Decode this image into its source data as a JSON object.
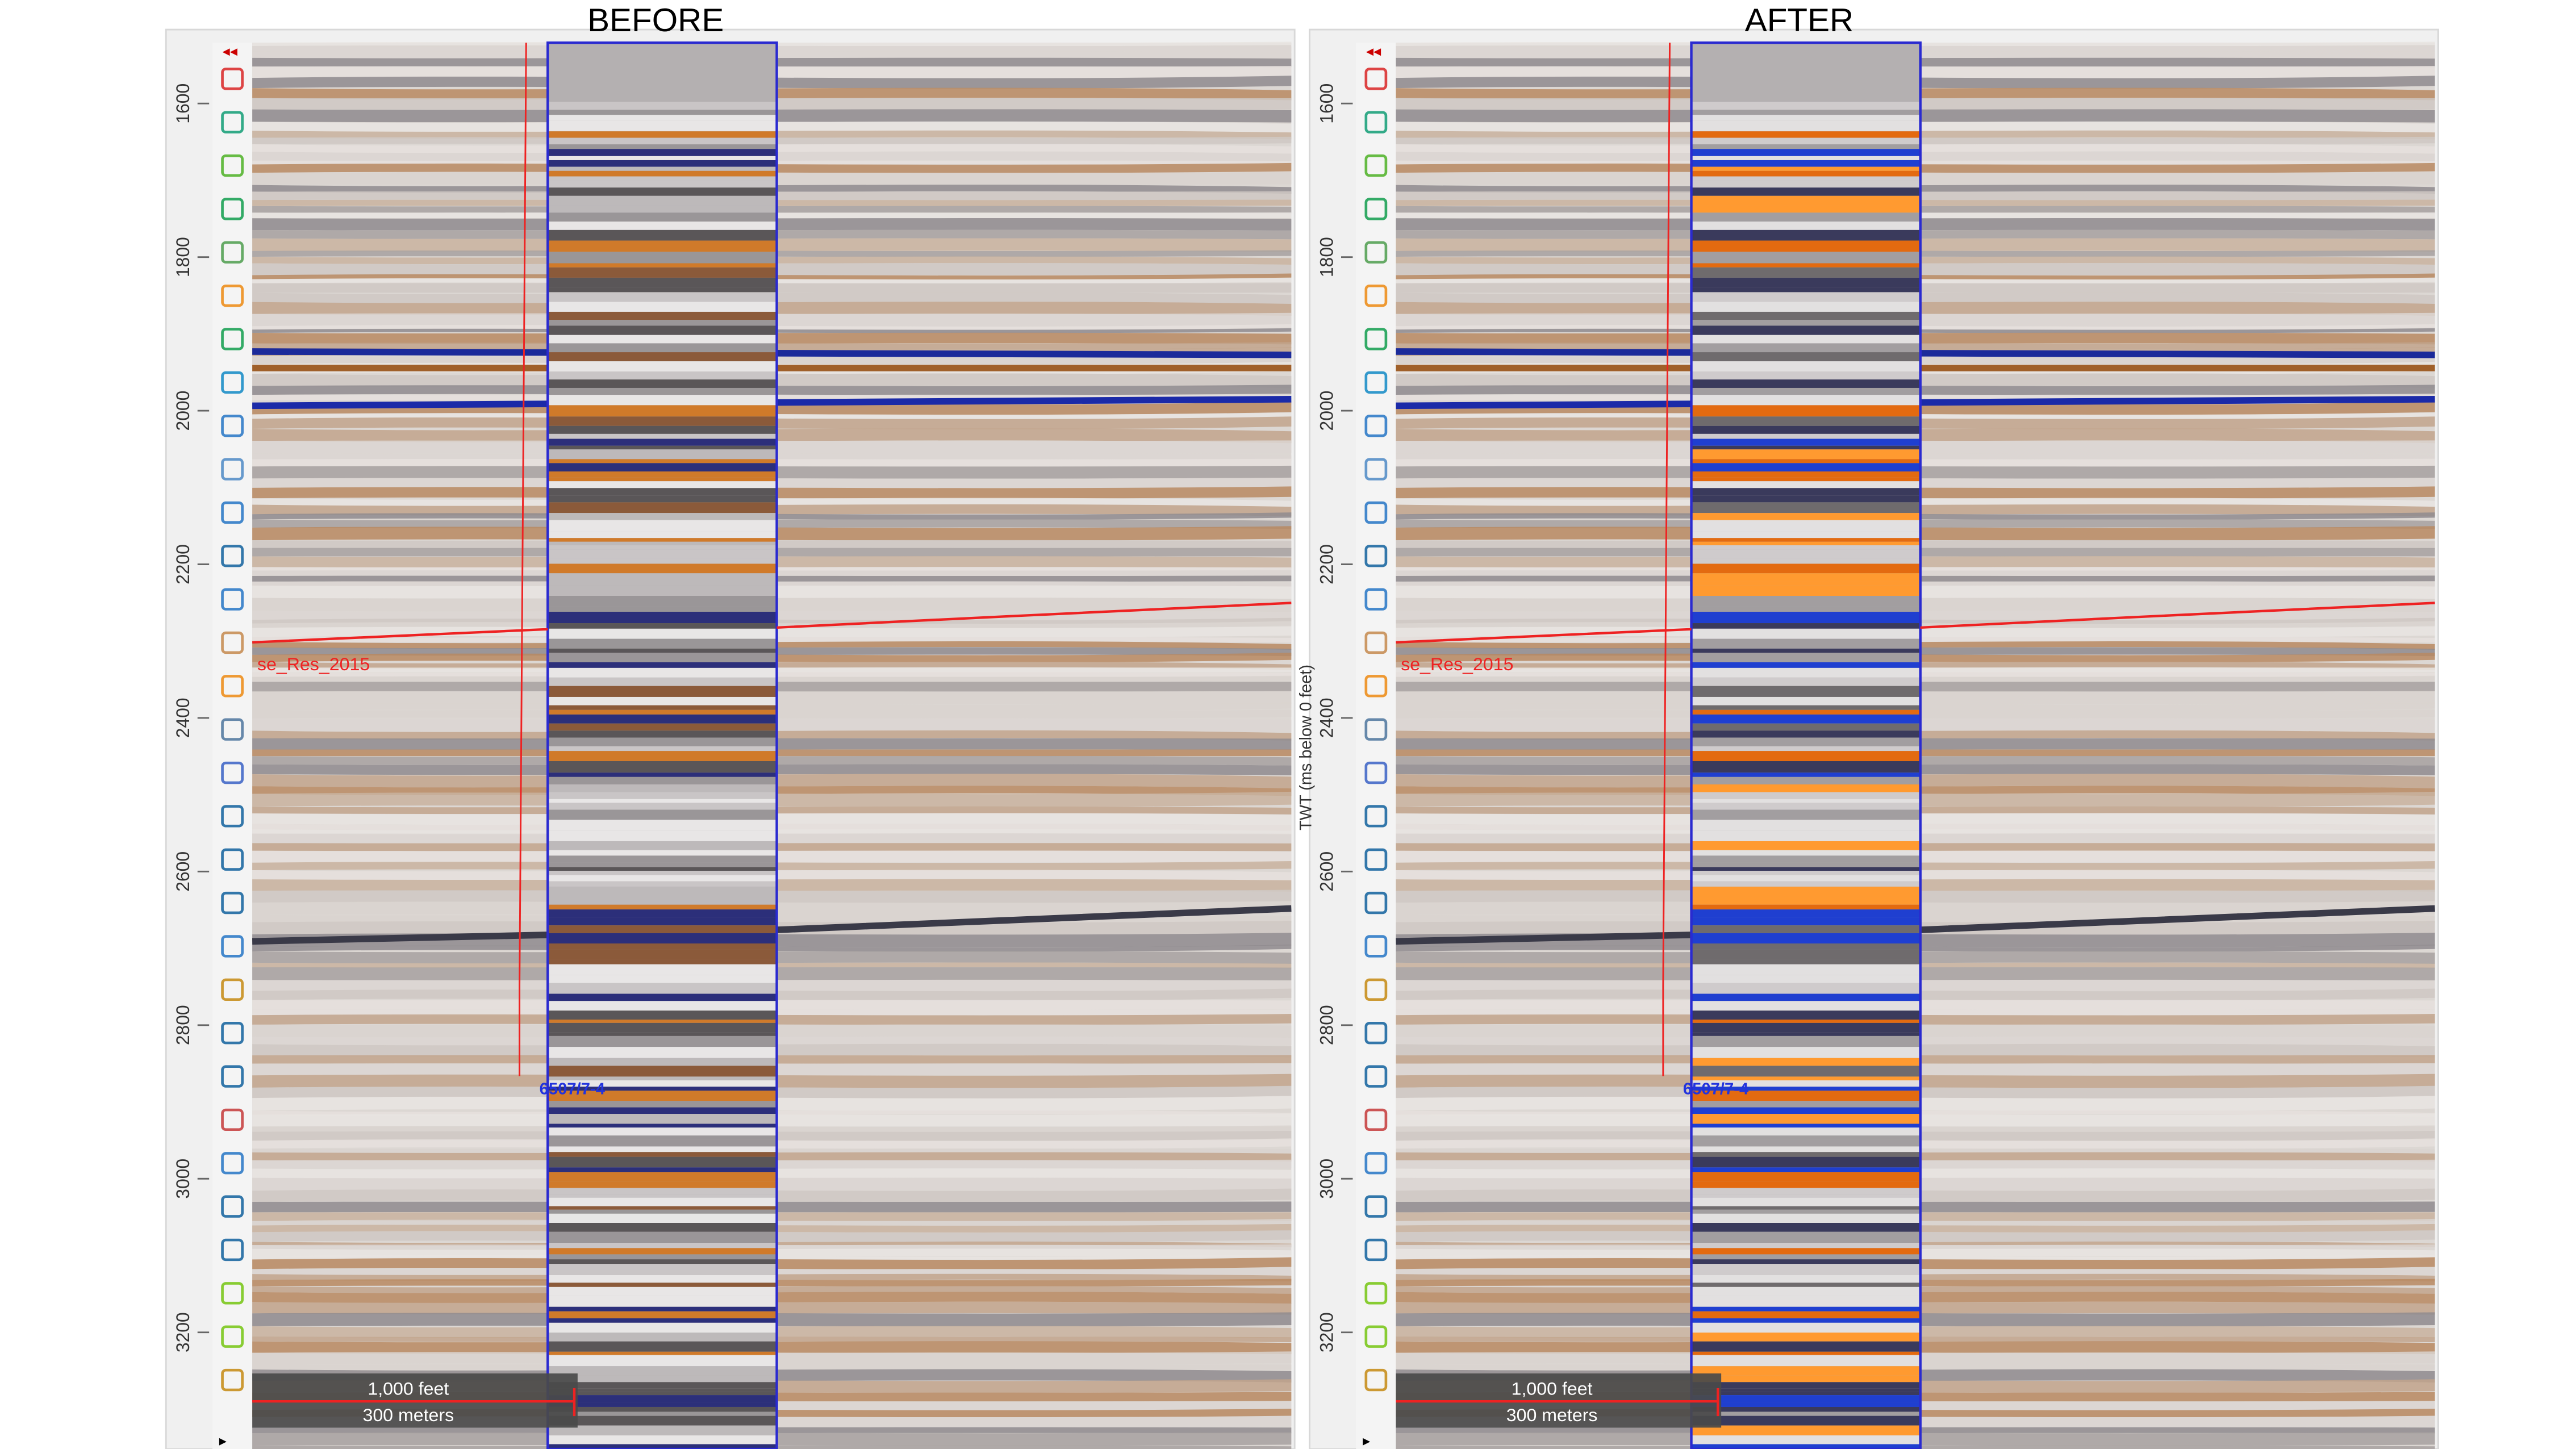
{
  "panels": [
    {
      "title": "BEFORE",
      "ticks": [
        1600,
        1800,
        2000,
        2200,
        2400,
        2600,
        2800,
        3000,
        3200
      ],
      "horizon_label": "se_Res_2015",
      "well_label": "6507/7-4",
      "scale_bar": {
        "feet": "1,000 feet",
        "meters": "300 meters"
      }
    },
    {
      "title": "AFTER",
      "axis_label": "TWT (ms below 0 feet)",
      "ticks": [
        1600,
        1800,
        2000,
        2200,
        2400,
        2600,
        2800,
        3000,
        3200
      ],
      "horizon_label": "se_Res_2015",
      "well_label": "6507/7-4",
      "scale_bar": {
        "feet": "1,000 feet",
        "meters": "300 meters"
      }
    }
  ]
}
